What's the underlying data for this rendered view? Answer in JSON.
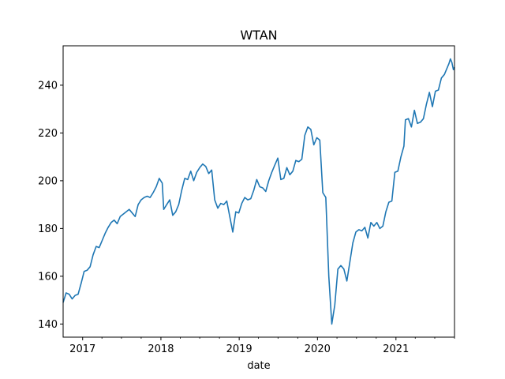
{
  "chart_data": {
    "type": "line",
    "title": "WTAN",
    "xlabel": "date",
    "ylabel": "",
    "grid": false,
    "x_tick_labels": [
      "2017",
      "2018",
      "2019",
      "2020",
      "2021"
    ],
    "y_tick_labels": [
      "140",
      "160",
      "180",
      "200",
      "220",
      "240"
    ],
    "y_ticks": [
      140,
      160,
      180,
      200,
      220,
      240
    ],
    "xlim": [
      "2016-10-02",
      "2021-10-01"
    ],
    "ylim": [
      134.5,
      256.5
    ],
    "series": [
      {
        "color": "#1f77b4",
        "points": [
          [
            "2016-10-02",
            149
          ],
          [
            "2016-10-16",
            153
          ],
          [
            "2016-10-30",
            152.5
          ],
          [
            "2016-11-13",
            150.5
          ],
          [
            "2016-11-27",
            152
          ],
          [
            "2016-12-11",
            152.5
          ],
          [
            "2016-12-25",
            157
          ],
          [
            "2017-01-08",
            162
          ],
          [
            "2017-01-22",
            162.5
          ],
          [
            "2017-02-05",
            164
          ],
          [
            "2017-02-19",
            169
          ],
          [
            "2017-03-05",
            172.5
          ],
          [
            "2017-03-19",
            172
          ],
          [
            "2017-04-02",
            175
          ],
          [
            "2017-04-16",
            178
          ],
          [
            "2017-04-30",
            180.5
          ],
          [
            "2017-05-14",
            182.5
          ],
          [
            "2017-05-28",
            183.5
          ],
          [
            "2017-06-11",
            182
          ],
          [
            "2017-06-25",
            185
          ],
          [
            "2017-07-09",
            186
          ],
          [
            "2017-07-23",
            187
          ],
          [
            "2017-08-06",
            188
          ],
          [
            "2017-08-20",
            186.5
          ],
          [
            "2017-09-03",
            185
          ],
          [
            "2017-09-17",
            190
          ],
          [
            "2017-10-01",
            192
          ],
          [
            "2017-10-15",
            193
          ],
          [
            "2017-10-29",
            193.5
          ],
          [
            "2017-11-12",
            193
          ],
          [
            "2017-11-26",
            195
          ],
          [
            "2017-12-10",
            197.5
          ],
          [
            "2017-12-24",
            201
          ],
          [
            "2018-01-07",
            199
          ],
          [
            "2018-01-14",
            188
          ],
          [
            "2018-01-28",
            190
          ],
          [
            "2018-02-11",
            192
          ],
          [
            "2018-02-25",
            185.5
          ],
          [
            "2018-03-11",
            187
          ],
          [
            "2018-03-25",
            190
          ],
          [
            "2018-04-08",
            196
          ],
          [
            "2018-04-22",
            201
          ],
          [
            "2018-05-06",
            200.5
          ],
          [
            "2018-05-20",
            204
          ],
          [
            "2018-06-03",
            200
          ],
          [
            "2018-06-17",
            203.5
          ],
          [
            "2018-07-01",
            205.5
          ],
          [
            "2018-07-15",
            207
          ],
          [
            "2018-07-29",
            206
          ],
          [
            "2018-08-12",
            203
          ],
          [
            "2018-08-26",
            204.5
          ],
          [
            "2018-09-09",
            192
          ],
          [
            "2018-09-23",
            188.5
          ],
          [
            "2018-10-07",
            190.5
          ],
          [
            "2018-10-21",
            190
          ],
          [
            "2018-11-04",
            191.5
          ],
          [
            "2018-11-18",
            185
          ],
          [
            "2018-12-02",
            178.5
          ],
          [
            "2018-12-16",
            187
          ],
          [
            "2018-12-30",
            186.5
          ],
          [
            "2019-01-13",
            190.5
          ],
          [
            "2019-01-27",
            193
          ],
          [
            "2019-02-10",
            192
          ],
          [
            "2019-02-24",
            192.5
          ],
          [
            "2019-03-10",
            196
          ],
          [
            "2019-03-24",
            200.5
          ],
          [
            "2019-04-07",
            197.5
          ],
          [
            "2019-04-21",
            197
          ],
          [
            "2019-05-05",
            195.5
          ],
          [
            "2019-05-19",
            200
          ],
          [
            "2019-06-02",
            203.5
          ],
          [
            "2019-06-16",
            206.5
          ],
          [
            "2019-06-30",
            209.5
          ],
          [
            "2019-07-14",
            200.5
          ],
          [
            "2019-07-28",
            201
          ],
          [
            "2019-08-11",
            205.5
          ],
          [
            "2019-08-25",
            202.5
          ],
          [
            "2019-09-08",
            204
          ],
          [
            "2019-09-22",
            208.5
          ],
          [
            "2019-10-06",
            208
          ],
          [
            "2019-10-20",
            209
          ],
          [
            "2019-11-03",
            219
          ],
          [
            "2019-11-17",
            222.5
          ],
          [
            "2019-12-01",
            221.5
          ],
          [
            "2019-12-15",
            215
          ],
          [
            "2019-12-29",
            218
          ],
          [
            "2020-01-12",
            217
          ],
          [
            "2020-01-26",
            195
          ],
          [
            "2020-02-09",
            193
          ],
          [
            "2020-02-23",
            160
          ],
          [
            "2020-03-08",
            140
          ],
          [
            "2020-03-22",
            148
          ],
          [
            "2020-04-05",
            163
          ],
          [
            "2020-04-19",
            164.5
          ],
          [
            "2020-05-03",
            163
          ],
          [
            "2020-05-17",
            158
          ],
          [
            "2020-05-31",
            166
          ],
          [
            "2020-06-14",
            174
          ],
          [
            "2020-06-28",
            178.5
          ],
          [
            "2020-07-12",
            179.5
          ],
          [
            "2020-07-26",
            179
          ],
          [
            "2020-08-09",
            180.5
          ],
          [
            "2020-08-23",
            176
          ],
          [
            "2020-09-06",
            182.5
          ],
          [
            "2020-09-20",
            181
          ],
          [
            "2020-10-04",
            182.5
          ],
          [
            "2020-10-18",
            180
          ],
          [
            "2020-11-01",
            181
          ],
          [
            "2020-11-15",
            187
          ],
          [
            "2020-11-29",
            191
          ],
          [
            "2020-12-13",
            191.5
          ],
          [
            "2020-12-27",
            203.5
          ],
          [
            "2021-01-10",
            204
          ],
          [
            "2021-01-24",
            210
          ],
          [
            "2021-02-07",
            214.5
          ],
          [
            "2021-02-14",
            225.5
          ],
          [
            "2021-02-28",
            226
          ],
          [
            "2021-03-14",
            222.5
          ],
          [
            "2021-03-28",
            229.5
          ],
          [
            "2021-04-11",
            224
          ],
          [
            "2021-04-25",
            224.5
          ],
          [
            "2021-05-09",
            226
          ],
          [
            "2021-05-23",
            232
          ],
          [
            "2021-06-06",
            237
          ],
          [
            "2021-06-20",
            231
          ],
          [
            "2021-07-04",
            237.5
          ],
          [
            "2021-07-18",
            238
          ],
          [
            "2021-08-01",
            243
          ],
          [
            "2021-08-15",
            244.5
          ],
          [
            "2021-08-29",
            247.5
          ],
          [
            "2021-09-05",
            249
          ],
          [
            "2021-09-12",
            251
          ],
          [
            "2021-09-19",
            249.5
          ],
          [
            "2021-09-26",
            246.5
          ],
          [
            "2021-10-01",
            247.5
          ]
        ]
      }
    ]
  }
}
